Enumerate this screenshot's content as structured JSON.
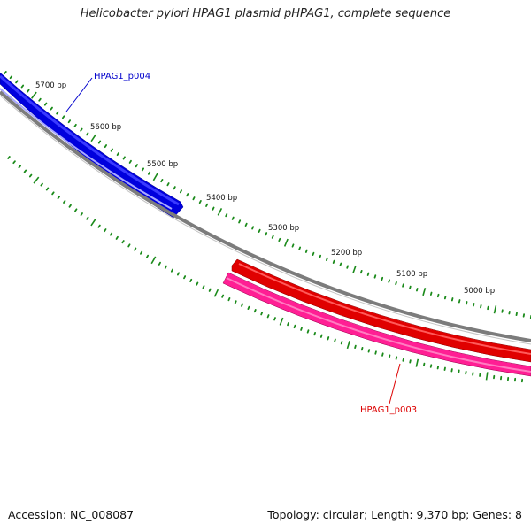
{
  "title": "Helicobacter pylori HPAG1 plasmid pHPAG1, complete sequence",
  "footer": {
    "accession": "Accession: NC_008087",
    "summary": "Topology: circular; Length: 9,370 bp; Genes: 8"
  },
  "plasmid": {
    "name": "pHPAG1",
    "topology": "circular",
    "length_bp": 9370,
    "gene_count": 8
  },
  "ruler": {
    "labels": [
      "5700 bp",
      "5600 bp",
      "5500 bp",
      "5400 bp",
      "5300 bp",
      "5200 bp",
      "5100 bp",
      "5000 bp"
    ]
  },
  "genes": [
    {
      "name": "HPAG1_p004",
      "strand": "forward",
      "color": "#0000ee",
      "label_color": "#0000cc"
    },
    {
      "name": "HPAG1_p003",
      "strand": "reverse",
      "color": "#ee0000",
      "label_color": "#dd0000"
    }
  ],
  "colors": {
    "backbone": "#808080",
    "tick": "#1a8a1a",
    "forward_gene": "#0000ee",
    "reverse_gene": "#ee0000",
    "reverse_gene_alt": "#ff2a9a"
  }
}
